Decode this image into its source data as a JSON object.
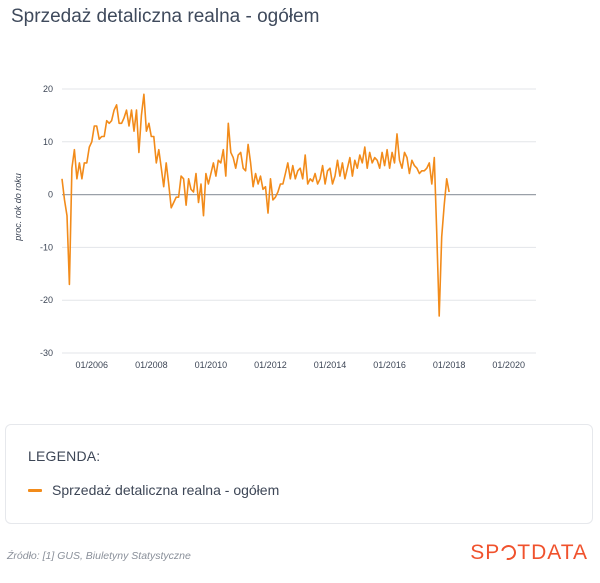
{
  "title": "Sprzedaż detaliczna realna - ogółem",
  "legend": {
    "heading": "LEGENDA:",
    "items": [
      {
        "label": "Sprzedaż detaliczna realna - ogółem",
        "color": "#f28b1a"
      }
    ]
  },
  "source": "Źródło: [1] GUS, Biuletyny Statystyczne",
  "brand": {
    "left": "SP",
    "right": "TDATA"
  },
  "chart_data": {
    "type": "line",
    "ylabel": "proc. rok do roku",
    "xlabel": "",
    "ylim": [
      -30,
      20
    ],
    "yticks": [
      -30,
      -20,
      -10,
      0,
      10,
      20
    ],
    "x_tick_labels": [
      "01/2006",
      "01/2008",
      "01/2010",
      "01/2012",
      "01/2014",
      "01/2016",
      "01/2018",
      "01/2020"
    ],
    "x_start": "2005-01",
    "x_end": "2020-12",
    "grid": true,
    "series": [
      {
        "name": "Sprzedaż detaliczna realna - ogółem",
        "color": "#f28b1a",
        "points": [
          [
            "2005-01",
            3.0
          ],
          [
            "2005-02",
            -1.0
          ],
          [
            "2005-03",
            -4.0
          ],
          [
            "2005-04",
            -17.0
          ],
          [
            "2005-05",
            5.0
          ],
          [
            "2005-06",
            8.5
          ],
          [
            "2005-07",
            3.0
          ],
          [
            "2005-08",
            6.0
          ],
          [
            "2005-09",
            3.0
          ],
          [
            "2005-10",
            6.0
          ],
          [
            "2005-11",
            6.0
          ],
          [
            "2005-12",
            9.0
          ],
          [
            "2006-01",
            10.0
          ],
          [
            "2006-02",
            13.0
          ],
          [
            "2006-03",
            13.0
          ],
          [
            "2006-04",
            10.5
          ],
          [
            "2006-05",
            11.0
          ],
          [
            "2006-06",
            11.0
          ],
          [
            "2006-07",
            14.0
          ],
          [
            "2006-08",
            13.5
          ],
          [
            "2006-09",
            14.0
          ],
          [
            "2006-10",
            16.0
          ],
          [
            "2006-11",
            17.0
          ],
          [
            "2006-12",
            13.5
          ],
          [
            "2007-01",
            13.5
          ],
          [
            "2007-02",
            14.5
          ],
          [
            "2007-03",
            16.0
          ],
          [
            "2007-04",
            13.0
          ],
          [
            "2007-05",
            16.0
          ],
          [
            "2007-06",
            12.0
          ],
          [
            "2007-07",
            16.0
          ],
          [
            "2007-08",
            8.0
          ],
          [
            "2007-09",
            15.0
          ],
          [
            "2007-10",
            19.0
          ],
          [
            "2007-11",
            12.0
          ],
          [
            "2007-12",
            13.5
          ],
          [
            "2008-01",
            11.0
          ],
          [
            "2008-02",
            11.0
          ],
          [
            "2008-03",
            6.0
          ],
          [
            "2008-04",
            8.5
          ],
          [
            "2008-05",
            5.0
          ],
          [
            "2008-06",
            1.5
          ],
          [
            "2008-07",
            6.0
          ],
          [
            "2008-08",
            2.0
          ],
          [
            "2008-09",
            -2.5
          ],
          [
            "2008-10",
            -1.5
          ],
          [
            "2008-11",
            -0.5
          ],
          [
            "2008-12",
            -0.5
          ],
          [
            "2009-01",
            3.5
          ],
          [
            "2009-02",
            3.0
          ],
          [
            "2009-03",
            -2.0
          ],
          [
            "2009-04",
            3.0
          ],
          [
            "2009-05",
            1.0
          ],
          [
            "2009-06",
            0.5
          ],
          [
            "2009-07",
            4.0
          ],
          [
            "2009-08",
            -1.5
          ],
          [
            "2009-09",
            2.0
          ],
          [
            "2009-10",
            -4.0
          ],
          [
            "2009-11",
            4.0
          ],
          [
            "2009-12",
            2.0
          ],
          [
            "2010-01",
            4.0
          ],
          [
            "2010-02",
            6.0
          ],
          [
            "2010-03",
            3.5
          ],
          [
            "2010-04",
            6.5
          ],
          [
            "2010-05",
            6.0
          ],
          [
            "2010-06",
            8.5
          ],
          [
            "2010-07",
            3.5
          ],
          [
            "2010-08",
            13.5
          ],
          [
            "2010-09",
            8.0
          ],
          [
            "2010-10",
            7.0
          ],
          [
            "2010-11",
            5.0
          ],
          [
            "2010-12",
            7.5
          ],
          [
            "2011-01",
            8.0
          ],
          [
            "2011-02",
            5.0
          ],
          [
            "2011-03",
            4.5
          ],
          [
            "2011-04",
            9.5
          ],
          [
            "2011-05",
            6.0
          ],
          [
            "2011-06",
            1.5
          ],
          [
            "2011-07",
            4.0
          ],
          [
            "2011-08",
            2.0
          ],
          [
            "2011-09",
            3.5
          ],
          [
            "2011-10",
            1.0
          ],
          [
            "2011-11",
            1.5
          ],
          [
            "2011-12",
            -3.5
          ],
          [
            "2012-01",
            3.0
          ],
          [
            "2012-02",
            -1.0
          ],
          [
            "2012-03",
            -0.5
          ],
          [
            "2012-04",
            0.5
          ],
          [
            "2012-05",
            2.0
          ],
          [
            "2012-06",
            2.0
          ],
          [
            "2012-07",
            4.0
          ],
          [
            "2012-08",
            6.0
          ],
          [
            "2012-09",
            3.0
          ],
          [
            "2012-10",
            5.5
          ],
          [
            "2012-11",
            3.0
          ],
          [
            "2012-12",
            4.5
          ],
          [
            "2013-01",
            5.0
          ],
          [
            "2013-02",
            3.0
          ],
          [
            "2013-03",
            7.5
          ],
          [
            "2013-04",
            2.0
          ],
          [
            "2013-05",
            3.0
          ],
          [
            "2013-06",
            2.5
          ],
          [
            "2013-07",
            4.0
          ],
          [
            "2013-08",
            2.0
          ],
          [
            "2013-09",
            3.0
          ],
          [
            "2013-10",
            5.5
          ],
          [
            "2013-11",
            2.0
          ],
          [
            "2013-12",
            4.5
          ],
          [
            "2014-01",
            5.0
          ],
          [
            "2014-02",
            2.0
          ],
          [
            "2014-03",
            3.5
          ],
          [
            "2014-04",
            6.5
          ],
          [
            "2014-05",
            3.5
          ],
          [
            "2014-06",
            6.0
          ],
          [
            "2014-07",
            3.0
          ],
          [
            "2014-08",
            5.0
          ],
          [
            "2014-09",
            7.0
          ],
          [
            "2014-10",
            3.5
          ],
          [
            "2014-11",
            6.5
          ],
          [
            "2014-12",
            5.0
          ],
          [
            "2015-01",
            7.5
          ],
          [
            "2015-02",
            6.0
          ],
          [
            "2015-03",
            9.0
          ],
          [
            "2015-04",
            5.0
          ],
          [
            "2015-05",
            8.0
          ],
          [
            "2015-06",
            6.0
          ],
          [
            "2015-07",
            7.0
          ],
          [
            "2015-08",
            6.5
          ],
          [
            "2015-09",
            5.0
          ],
          [
            "2015-10",
            8.0
          ],
          [
            "2015-11",
            5.5
          ],
          [
            "2015-12",
            8.5
          ],
          [
            "2016-01",
            5.0
          ],
          [
            "2016-02",
            8.0
          ],
          [
            "2016-03",
            6.0
          ],
          [
            "2016-04",
            11.5
          ],
          [
            "2016-05",
            6.5
          ],
          [
            "2016-06",
            5.0
          ],
          [
            "2016-07",
            8.0
          ],
          [
            "2016-08",
            7.0
          ],
          [
            "2016-09",
            4.0
          ],
          [
            "2016-10",
            6.5
          ],
          [
            "2016-11",
            5.5
          ],
          [
            "2016-12",
            5.0
          ],
          [
            "2017-01",
            4.0
          ],
          [
            "2017-02",
            4.5
          ],
          [
            "2017-03",
            4.5
          ],
          [
            "2017-04",
            5.0
          ],
          [
            "2017-05",
            6.0
          ],
          [
            "2017-06",
            2.0
          ],
          [
            "2017-07",
            7.0
          ],
          [
            "2017-08",
            -7.0
          ],
          [
            "2017-09",
            -23.0
          ],
          [
            "2017-10",
            -8.0
          ],
          [
            "2017-11",
            -2.0
          ],
          [
            "2017-12",
            3.0
          ],
          [
            "2018-01",
            0.5
          ]
        ]
      }
    ]
  }
}
